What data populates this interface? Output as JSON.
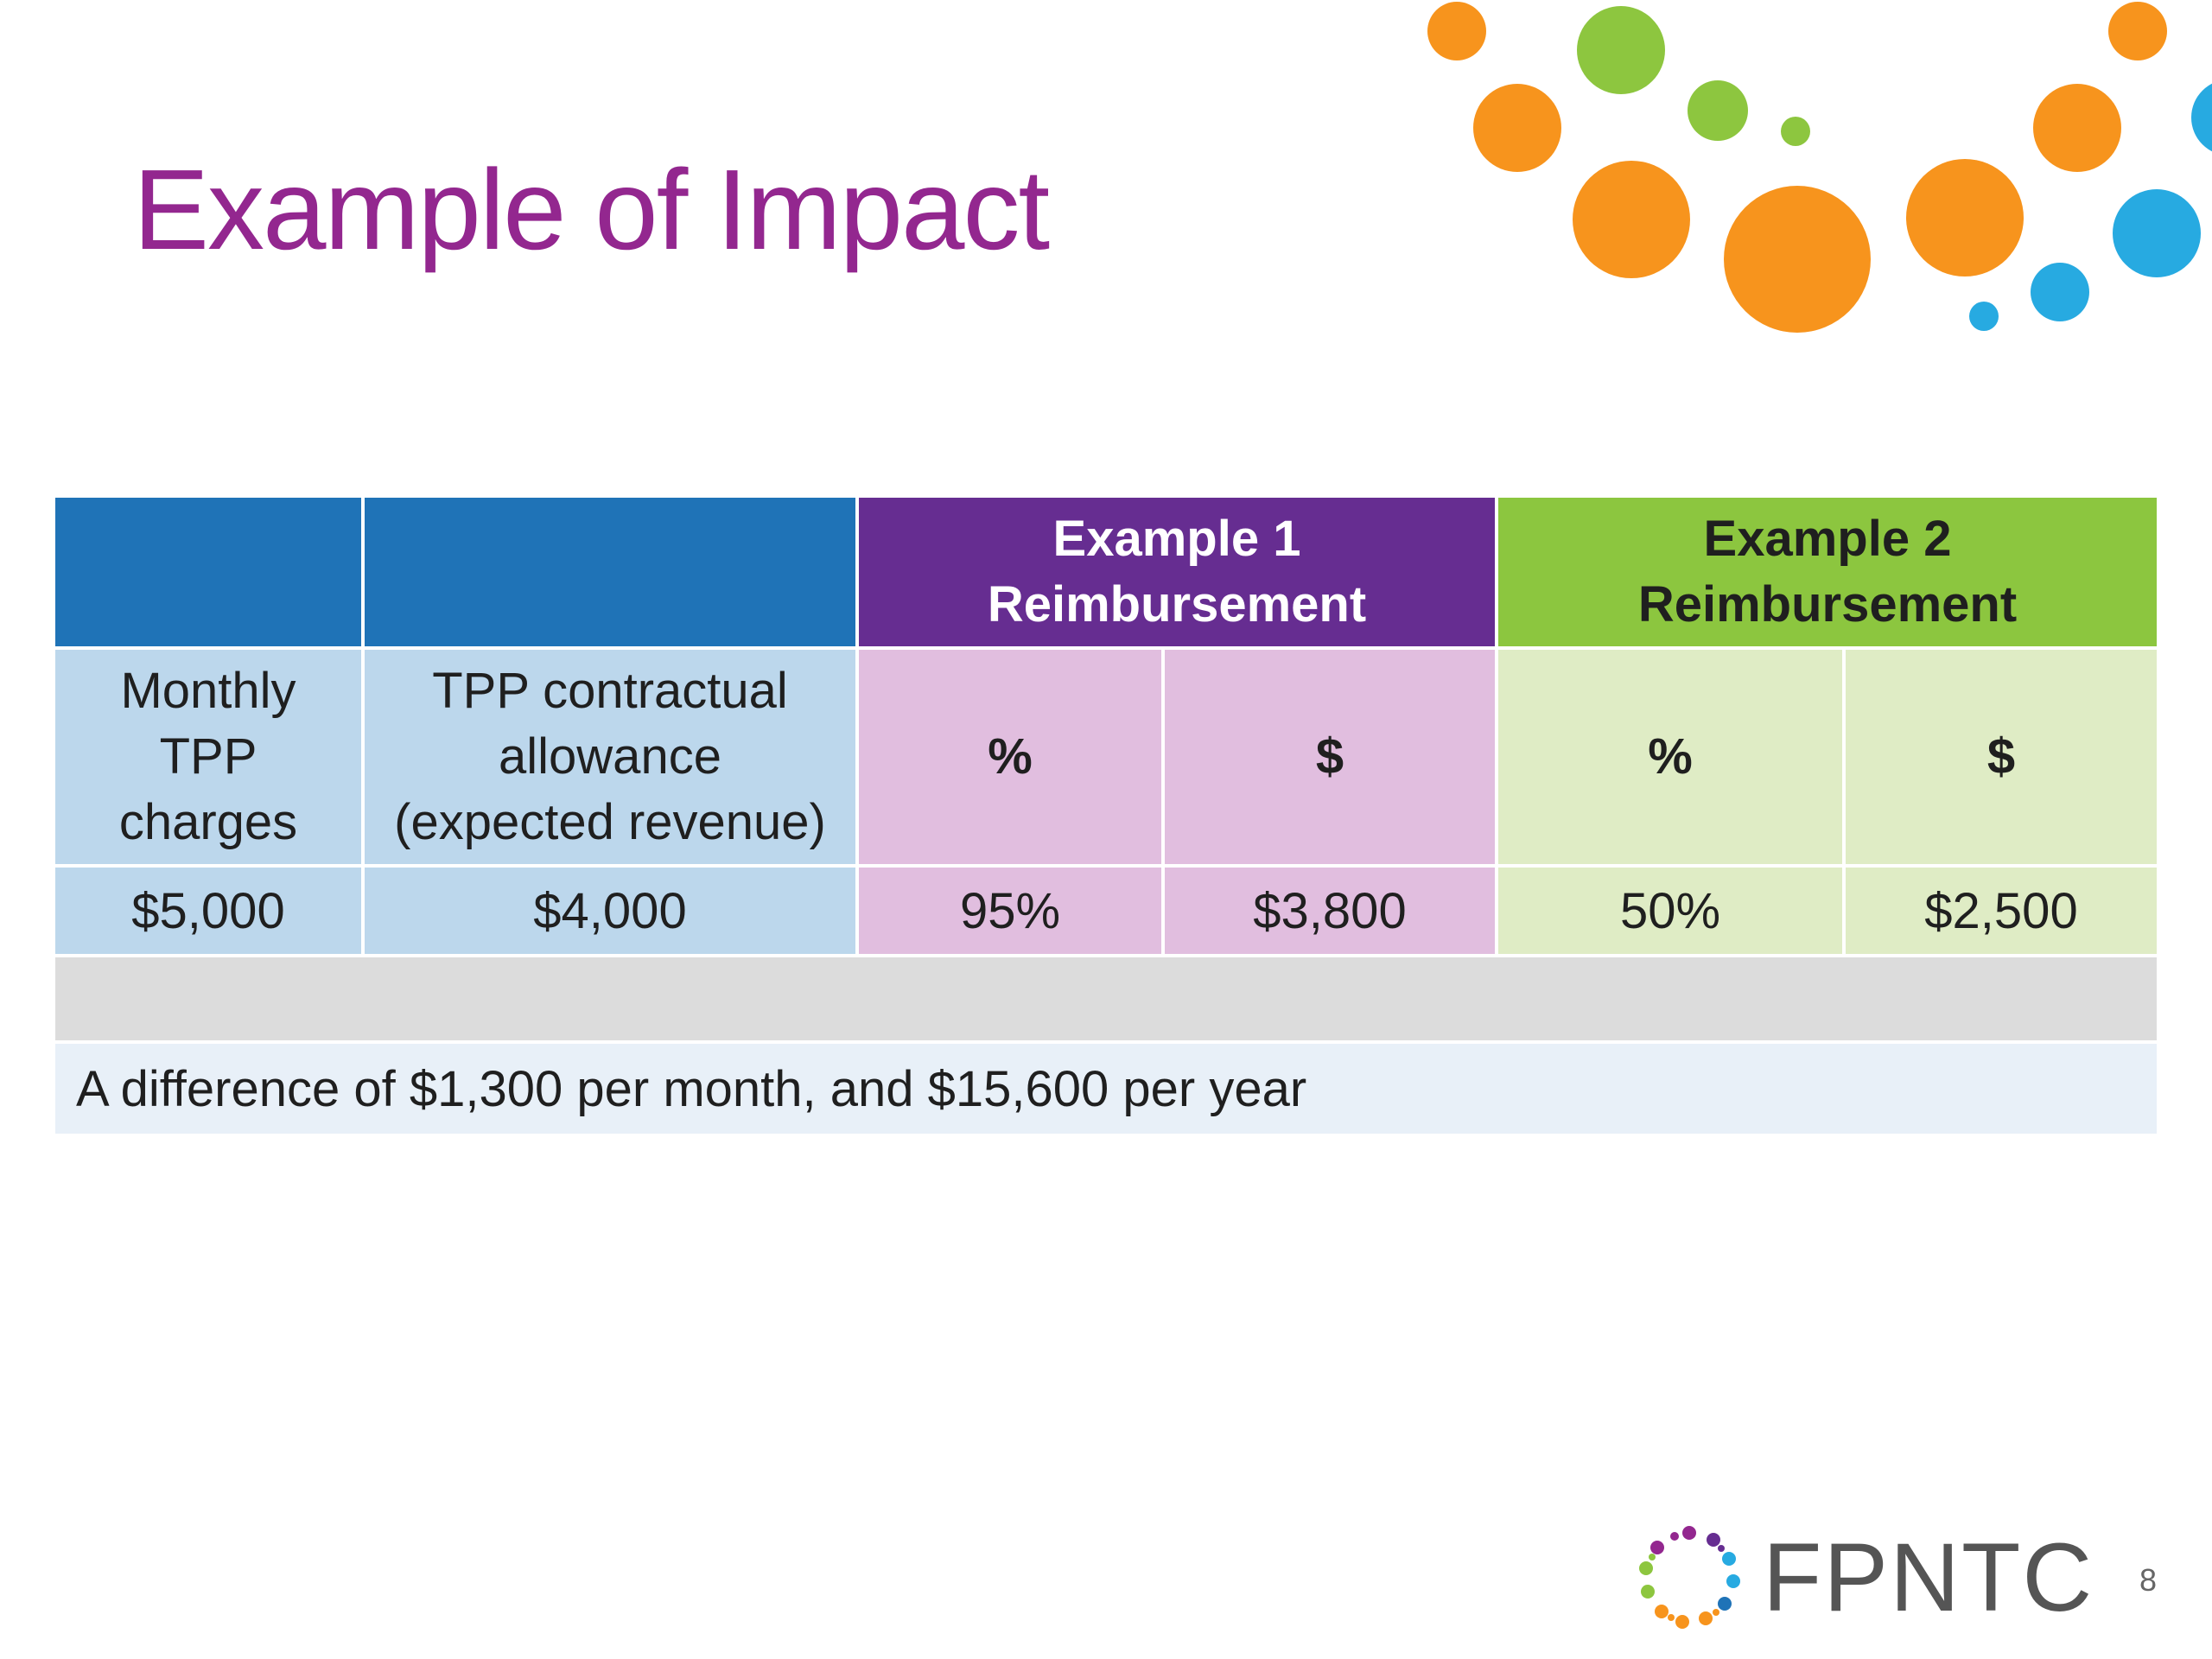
{
  "slide": {
    "title": "Example of Impact",
    "page_number": "8",
    "logo_text": "FPNTC"
  },
  "colors": {
    "title": "#93278f",
    "header_blue": "#1f73b7",
    "header_purple": "#662d91",
    "header_green": "#8cc63f",
    "cell_blue": "#bcd7ec",
    "cell_pink": "#e1bedf",
    "cell_light_green": "#dfecc5",
    "bubble_orange": "#f7941d",
    "bubble_green": "#8dc63f",
    "bubble_blue": "#27aae1"
  },
  "table": {
    "headers": {
      "example1_line1": "Example 1",
      "example1_line2": "Reimbursement",
      "example2_line1": "Example 2",
      "example2_line2": "Reimbursement"
    },
    "subheaders": {
      "charges_line1": "Monthly",
      "charges_line2": "TPP",
      "charges_line3": "charges",
      "allowance_line1": "TPP contractual",
      "allowance_line2": "allowance",
      "allowance_line3": "(expected revenue)",
      "ex1_percent": "%",
      "ex1_dollar": "$",
      "ex2_percent": "%",
      "ex2_dollar": "$"
    },
    "values": {
      "charges": "$5,000",
      "allowance": "$4,000",
      "ex1_percent": "95%",
      "ex1_dollar": "$3,800",
      "ex2_percent": "50%",
      "ex2_dollar": "$2,500"
    },
    "note": "A difference of $1,300 per month, and $15,600 per year"
  }
}
